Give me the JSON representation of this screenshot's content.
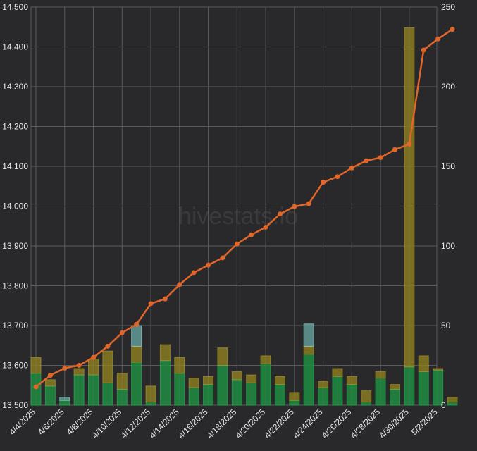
{
  "chart_data": {
    "type": "line+bar",
    "watermark": "hivestats.io",
    "colors": {
      "background": "#29282a",
      "grid": "#5a5a5c",
      "line": "#e0662a",
      "bar_green": "#1f8c42",
      "bar_olive": "#8f7f22",
      "bar_teal": "#6aa9a7"
    },
    "categories": [
      "4/4/2025",
      "4/5/2025",
      "4/6/2025",
      "4/7/2025",
      "4/8/2025",
      "4/9/2025",
      "4/10/2025",
      "4/11/2025",
      "4/12/2025",
      "4/13/2025",
      "4/14/2025",
      "4/15/2025",
      "4/16/2025",
      "4/17/2025",
      "4/18/2025",
      "4/19/2025",
      "4/20/2025",
      "4/21/2025",
      "4/22/2025",
      "4/23/2025",
      "4/24/2025",
      "4/25/2025",
      "4/26/2025",
      "4/27/2025",
      "4/28/2025",
      "4/29/2025",
      "4/30/2025",
      "5/1/2025",
      "5/2/2025",
      "5/3/2025"
    ],
    "x_tick_labels": [
      "4/4/2025",
      "4/6/2025",
      "4/8/2025",
      "4/10/2025",
      "4/12/2025",
      "4/14/2025",
      "4/16/2025",
      "4/18/2025",
      "4/20/2025",
      "4/22/2025",
      "4/24/2025",
      "4/26/2025",
      "4/28/2025",
      "4/30/2025",
      "5/2/2025"
    ],
    "y_left": {
      "min": 13.5,
      "max": 14.5,
      "ticks": [
        "13.500",
        "13.600",
        "13.700",
        "13.800",
        "13.900",
        "14.000",
        "14.100",
        "14.200",
        "14.300",
        "14.400",
        "14.500"
      ]
    },
    "y_right": {
      "min": 0,
      "max": 250,
      "ticks": [
        "0",
        "50",
        "100",
        "150",
        "200",
        "250"
      ]
    },
    "series": [
      {
        "name": "value",
        "type": "line",
        "axis": "left",
        "values": [
          13.546,
          13.575,
          13.593,
          13.6,
          13.62,
          13.648,
          13.682,
          13.703,
          13.755,
          13.767,
          13.803,
          13.833,
          13.852,
          13.87,
          13.905,
          13.928,
          13.947,
          13.98,
          13.999,
          14.006,
          14.06,
          14.074,
          14.096,
          14.114,
          14.122,
          14.142,
          14.156,
          14.392,
          14.42,
          14.444
        ]
      },
      {
        "name": "green",
        "type": "bar",
        "axis": "right",
        "values": [
          20,
          12,
          3,
          19,
          19,
          14,
          10,
          27,
          2,
          28,
          20,
          11,
          13,
          25,
          16,
          14,
          26,
          13,
          3,
          32,
          11,
          18,
          13,
          2,
          17,
          10,
          24,
          21,
          22,
          2
        ]
      },
      {
        "name": "olive",
        "type": "bar",
        "axis": "right",
        "values": [
          10,
          4,
          0,
          4,
          10,
          20,
          10,
          10,
          10,
          10,
          10,
          6,
          5,
          11,
          5,
          5,
          5,
          5,
          5,
          5,
          4,
          5,
          5,
          7,
          4,
          3,
          213,
          10,
          1,
          3
        ]
      },
      {
        "name": "teal",
        "type": "bar",
        "axis": "right",
        "values": [
          0,
          0,
          2,
          0,
          0,
          0,
          0,
          13,
          0,
          0,
          0,
          0,
          0,
          0,
          0,
          0,
          0,
          0,
          0,
          14,
          0,
          0,
          0,
          0,
          0,
          0,
          0,
          0,
          0,
          0
        ]
      }
    ]
  }
}
